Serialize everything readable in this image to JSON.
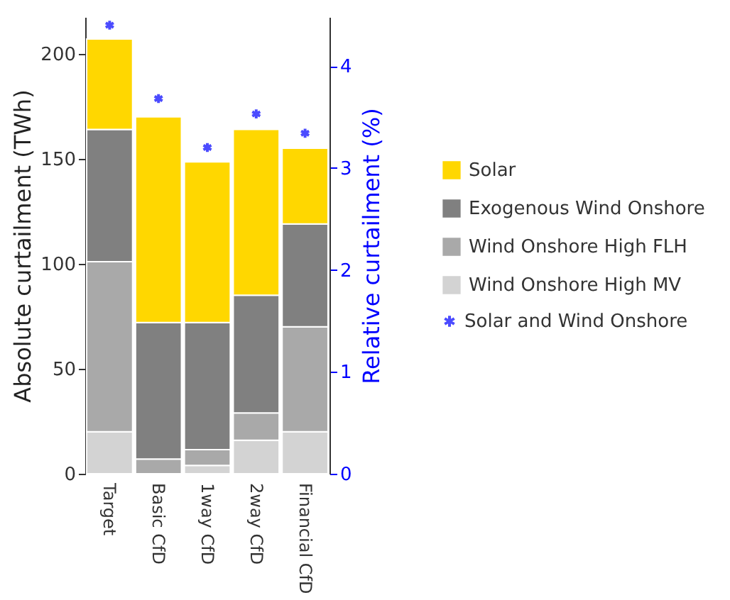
{
  "chart_data": {
    "type": "bar",
    "stacked": true,
    "ylabel": "Absolute curtailment (TWh)",
    "y2label": "Relative curtailment (%)",
    "categories": [
      "Target",
      "Basic CfD",
      "1way CfD",
      "2way CfD",
      "Financial CfD"
    ],
    "series": [
      {
        "name": "Wind Onshore High MV",
        "color": "#d3d3d3",
        "values": [
          20,
          0,
          4,
          16,
          20
        ]
      },
      {
        "name": "Wind Onshore High FLH",
        "color": "#a9a9a9",
        "values": [
          81,
          7,
          7.5,
          13,
          50
        ]
      },
      {
        "name": "Exogenous Wind Onshore",
        "color": "#808080",
        "values": [
          63,
          65,
          60.5,
          56,
          49
        ]
      },
      {
        "name": "Solar",
        "color": "#ffd700",
        "values": [
          43,
          98,
          76.5,
          79,
          36
        ]
      },
      {
        "name": "Solar and Wind Onshore",
        "type": "scatter",
        "axis": "y2",
        "marker": "cross",
        "color": "#0000ff",
        "values": [
          4.4,
          3.68,
          3.2,
          3.53,
          3.34
        ]
      }
    ],
    "ylim": [
      0,
      217.5
    ],
    "yticks": [
      0,
      50,
      100,
      150,
      200
    ],
    "y2lim": [
      0,
      4.48
    ],
    "y2ticks": [
      0,
      1,
      2,
      3,
      4
    ],
    "grid": false,
    "legend": "right"
  }
}
